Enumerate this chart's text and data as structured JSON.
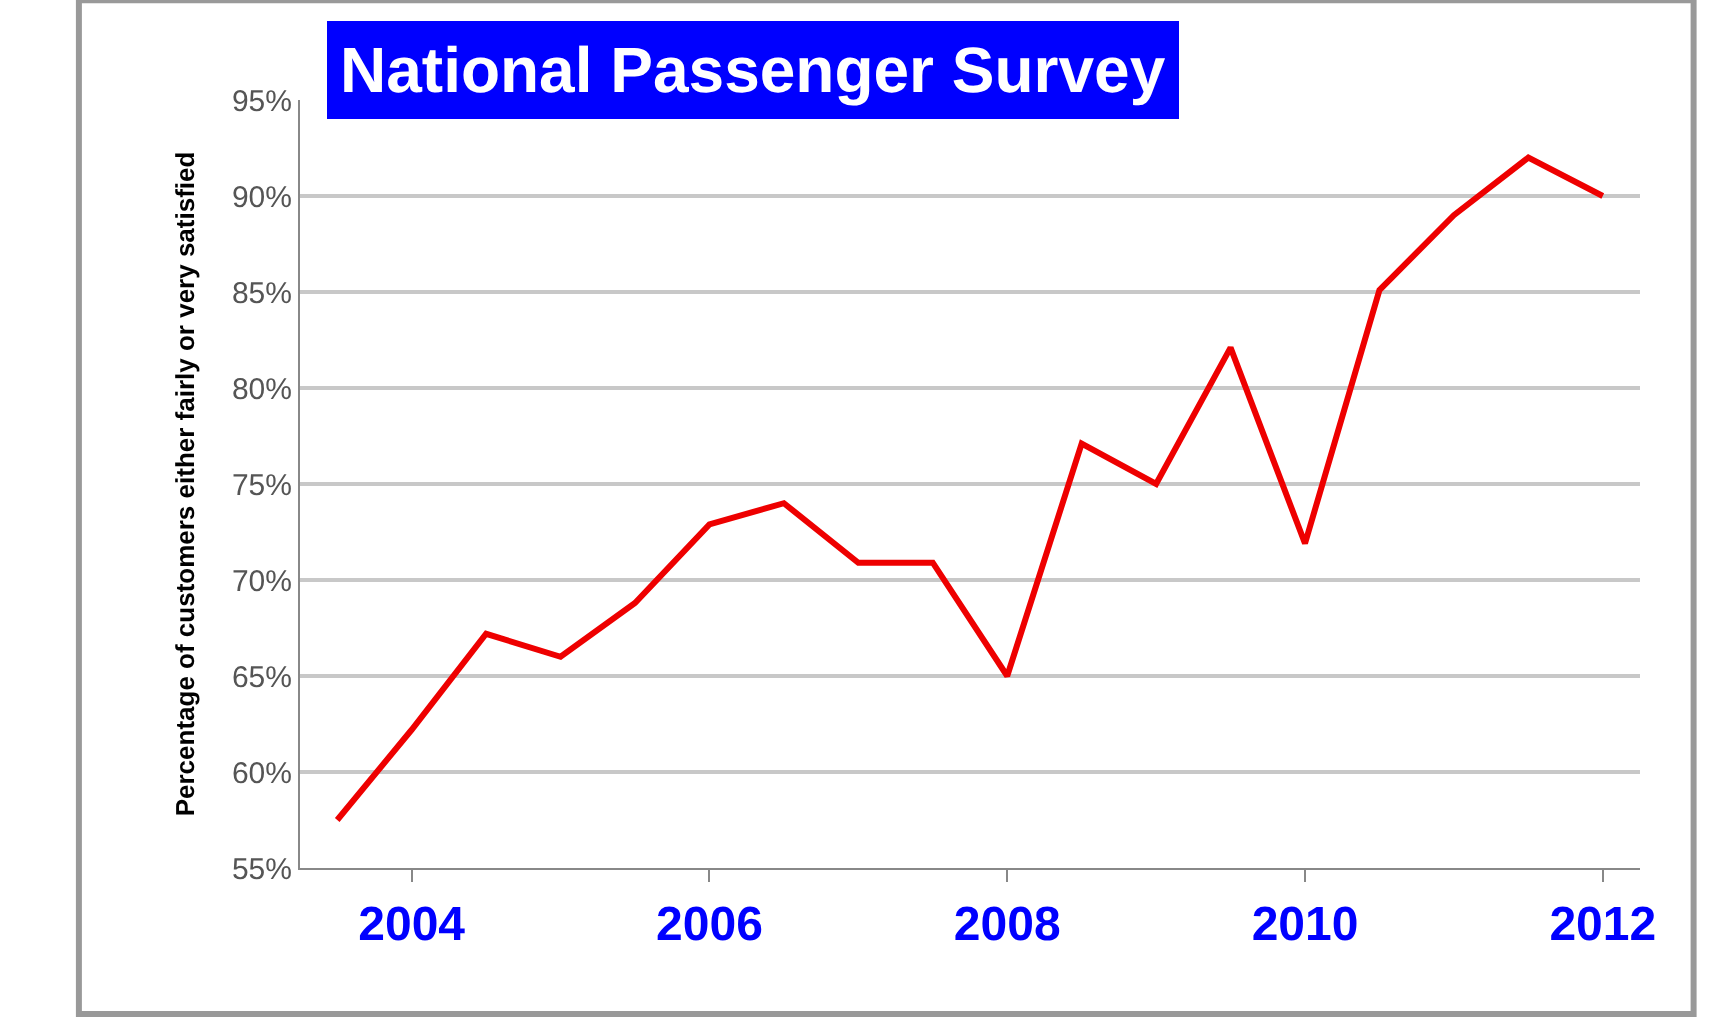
{
  "chart_data": {
    "type": "line",
    "title": "National Passenger Survey",
    "ylabel": "Percentage of customers either fairly or very satisfied",
    "categories": [
      null,
      "2004",
      null,
      null,
      null,
      "2006",
      null,
      null,
      null,
      "2008",
      null,
      null,
      null,
      "2010",
      null,
      null,
      null,
      "2012"
    ],
    "series": [
      {
        "color": "#ee0000",
        "values": [
          57.5,
          62.2,
          67.2,
          66,
          68.8,
          72.9,
          74,
          70.9,
          70.9,
          65,
          77.1,
          75,
          82.1,
          71.9,
          85.1,
          89,
          92,
          90
        ]
      }
    ],
    "ylim": [
      55,
      95
    ],
    "yticks": [
      {
        "value": 55,
        "label": "55%"
      },
      {
        "value": 60,
        "label": "60%"
      },
      {
        "value": 65,
        "label": "65%"
      },
      {
        "value": 70,
        "label": "70%"
      },
      {
        "value": 75,
        "label": "75%"
      },
      {
        "value": 80,
        "label": "80%"
      },
      {
        "value": 85,
        "label": "85%"
      },
      {
        "value": 90,
        "label": "90%"
      },
      {
        "value": 95,
        "label": "95%"
      }
    ],
    "grid": "y",
    "legend": false,
    "marker": "none",
    "line_style": "solid"
  }
}
